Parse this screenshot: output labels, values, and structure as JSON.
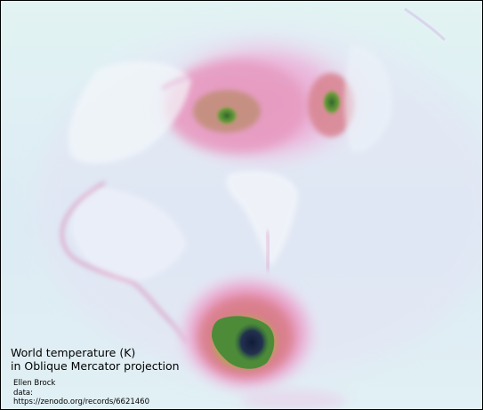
{
  "map": {
    "title_line1": "World temperature (K)",
    "title_line2": "in Oblique Mercator projection",
    "credit_author": "Ellen Brock",
    "credit_data_label": "data:",
    "credit_url": "https://zenodo.org/records/6621460",
    "colormap": {
      "base": "#dff2f1",
      "cool": "#f0f6fa",
      "mid": "#e6a7d6",
      "warm": "#d97a91",
      "hot": "#4a8a3a",
      "hottest": "#1a2440"
    }
  }
}
